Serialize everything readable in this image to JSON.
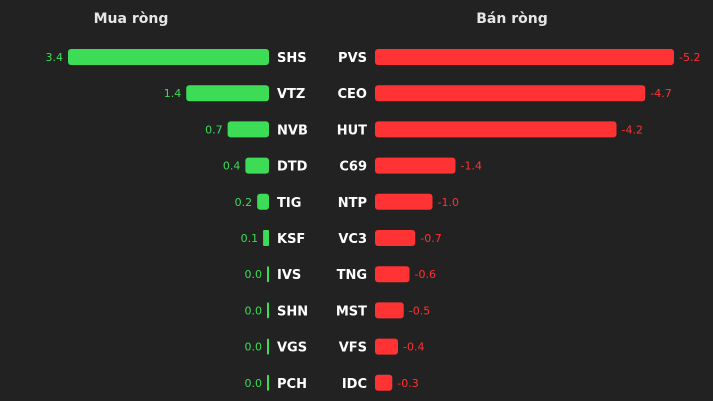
{
  "chart_data": [
    {
      "type": "bar",
      "orientation": "horizontal",
      "title": "Mua ròng",
      "categories": [
        "SHS",
        "VTZ",
        "NVB",
        "DTD",
        "TIG",
        "KSF",
        "IVS",
        "SHN",
        "VGS",
        "PCH"
      ],
      "values": [
        3.4,
        1.4,
        0.7,
        0.4,
        0.2,
        0.1,
        0.0,
        0.0,
        0.0,
        0.0
      ],
      "value_labels": [
        "3.4",
        "1.4",
        "0.7",
        "0.4",
        "0.2",
        "0.1",
        "0.0",
        "0.0",
        "0.0",
        "0.0"
      ],
      "color": "#3ddc57",
      "direction": "leftward",
      "xlim": [
        0,
        3.4
      ]
    },
    {
      "type": "bar",
      "orientation": "horizontal",
      "title": "Bán ròng",
      "categories": [
        "PVS",
        "CEO",
        "HUT",
        "C69",
        "NTP",
        "VC3",
        "TNG",
        "MST",
        "VFS",
        "IDC"
      ],
      "values": [
        -5.2,
        -4.7,
        -4.2,
        -1.4,
        -1.0,
        -0.7,
        -0.6,
        -0.5,
        -0.4,
        -0.3
      ],
      "value_labels": [
        "-5.2",
        "-4.7",
        "-4.2",
        "-1.4",
        "-1.0",
        "-0.7",
        "-0.6",
        "-0.5",
        "-0.4",
        "-0.3"
      ],
      "color": "#ff3333",
      "direction": "rightward",
      "xlim": [
        0,
        5.2
      ]
    }
  ]
}
